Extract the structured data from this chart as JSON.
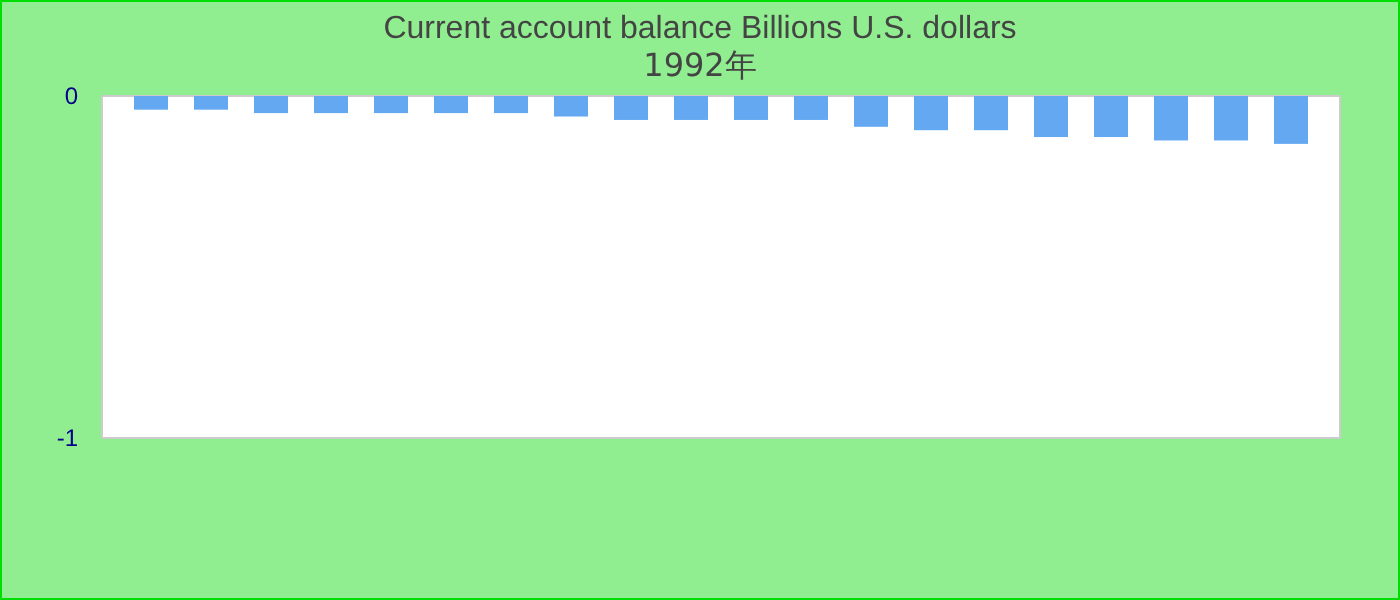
{
  "chart_data": {
    "type": "bar",
    "title": "Current account balance Billions U.S. dollars",
    "subtitle": "1992年",
    "categories": [
      null,
      null,
      null,
      null,
      null,
      null,
      null,
      null,
      null,
      null,
      null,
      null,
      null,
      null,
      null,
      null,
      null,
      null,
      null,
      null
    ],
    "values": [
      -0.04,
      -0.04,
      -0.05,
      -0.05,
      -0.05,
      -0.05,
      -0.05,
      -0.06,
      -0.07,
      -0.07,
      -0.07,
      -0.07,
      -0.09,
      -0.1,
      -0.1,
      -0.12,
      -0.12,
      -0.13,
      -0.13,
      -0.14
    ],
    "color": "#63a8f0",
    "ylim": [
      -1,
      0
    ],
    "yticks": [
      {
        "value": -1,
        "label": "-1"
      },
      {
        "value": 0,
        "label": "0"
      }
    ],
    "grid": false
  }
}
